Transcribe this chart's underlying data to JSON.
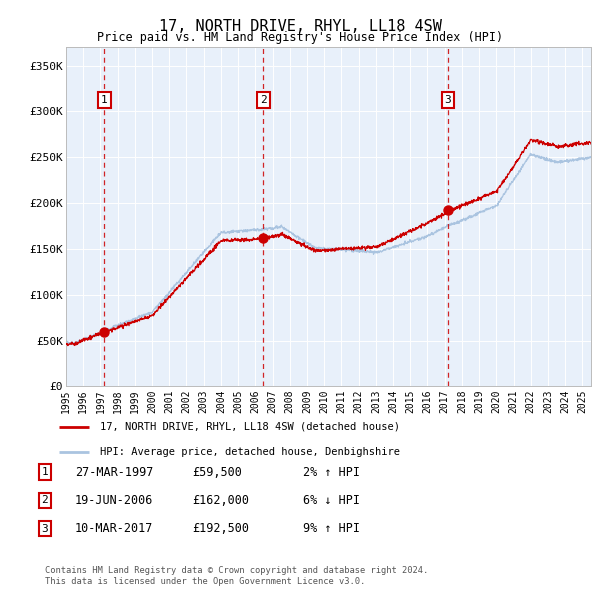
{
  "title": "17, NORTH DRIVE, RHYL, LL18 4SW",
  "subtitle": "Price paid vs. HM Land Registry's House Price Index (HPI)",
  "legend_line1": "17, NORTH DRIVE, RHYL, LL18 4SW (detached house)",
  "legend_line2": "HPI: Average price, detached house, Denbighshire",
  "transactions": [
    {
      "num": 1,
      "date": "27-MAR-1997",
      "price": 59500,
      "hpi_diff": "2% ↑ HPI",
      "year": 1997.23
    },
    {
      "num": 2,
      "date": "19-JUN-2006",
      "price": 162000,
      "hpi_diff": "6% ↓ HPI",
      "year": 2006.47
    },
    {
      "num": 3,
      "date": "10-MAR-2017",
      "price": 192500,
      "hpi_diff": "9% ↑ HPI",
      "year": 2017.19
    }
  ],
  "footer": "Contains HM Land Registry data © Crown copyright and database right 2024.\nThis data is licensed under the Open Government Licence v3.0.",
  "ylim": [
    0,
    370000
  ],
  "xlim_start": 1995.0,
  "xlim_end": 2025.5,
  "hpi_color": "#aac4e0",
  "price_color": "#cc0000",
  "plot_bg": "#e8f0fa",
  "vline_color": "#cc0000",
  "yticks": [
    0,
    50000,
    100000,
    150000,
    200000,
    250000,
    300000,
    350000
  ],
  "ytick_labels": [
    "£0",
    "£50K",
    "£100K",
    "£150K",
    "£200K",
    "£250K",
    "£300K",
    "£350K"
  ]
}
